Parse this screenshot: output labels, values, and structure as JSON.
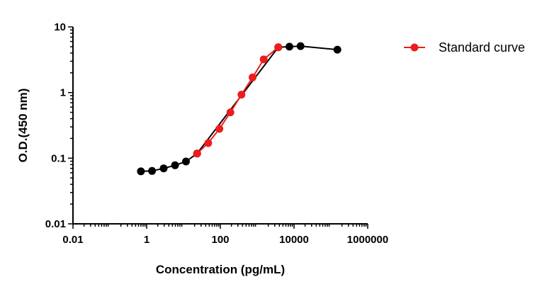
{
  "chart_data": {
    "type": "scatter",
    "title": "",
    "xlabel": "Concentration (pg/mL)",
    "ylabel": "O.D.(450 nm)",
    "xscale": "log",
    "yscale": "log",
    "xlim": [
      0.01,
      1000000
    ],
    "ylim": [
      0.01,
      10
    ],
    "x_ticks": [
      0.01,
      1,
      100,
      10000,
      1000000
    ],
    "x_tick_labels": [
      "0.01",
      "1",
      "100",
      "10000",
      "1000000"
    ],
    "y_ticks": [
      0.01,
      0.1,
      1,
      10
    ],
    "y_tick_labels": [
      "0.01",
      "0.1",
      "1",
      "10"
    ],
    "grid": false,
    "legend_position": "top-right",
    "colors": {
      "standard": "#ee1c1c",
      "other": "#000000"
    },
    "series": [
      {
        "name": "",
        "color": "#000000",
        "x": [
          0.7,
          1.4,
          2.9,
          5.9,
          11.7,
          23.4,
          3750,
          7500,
          15000,
          150000
        ],
        "y": [
          0.063,
          0.064,
          0.07,
          0.078,
          0.089,
          0.118,
          4.9,
          5.0,
          5.1,
          4.5
        ]
      },
      {
        "name": "Standard curve",
        "color": "#ee1c1c",
        "x": [
          23.4,
          46.9,
          93.8,
          187.5,
          375,
          750,
          1500,
          3750
        ],
        "y": [
          0.118,
          0.17,
          0.28,
          0.5,
          0.93,
          1.7,
          3.2,
          4.9
        ]
      }
    ]
  }
}
